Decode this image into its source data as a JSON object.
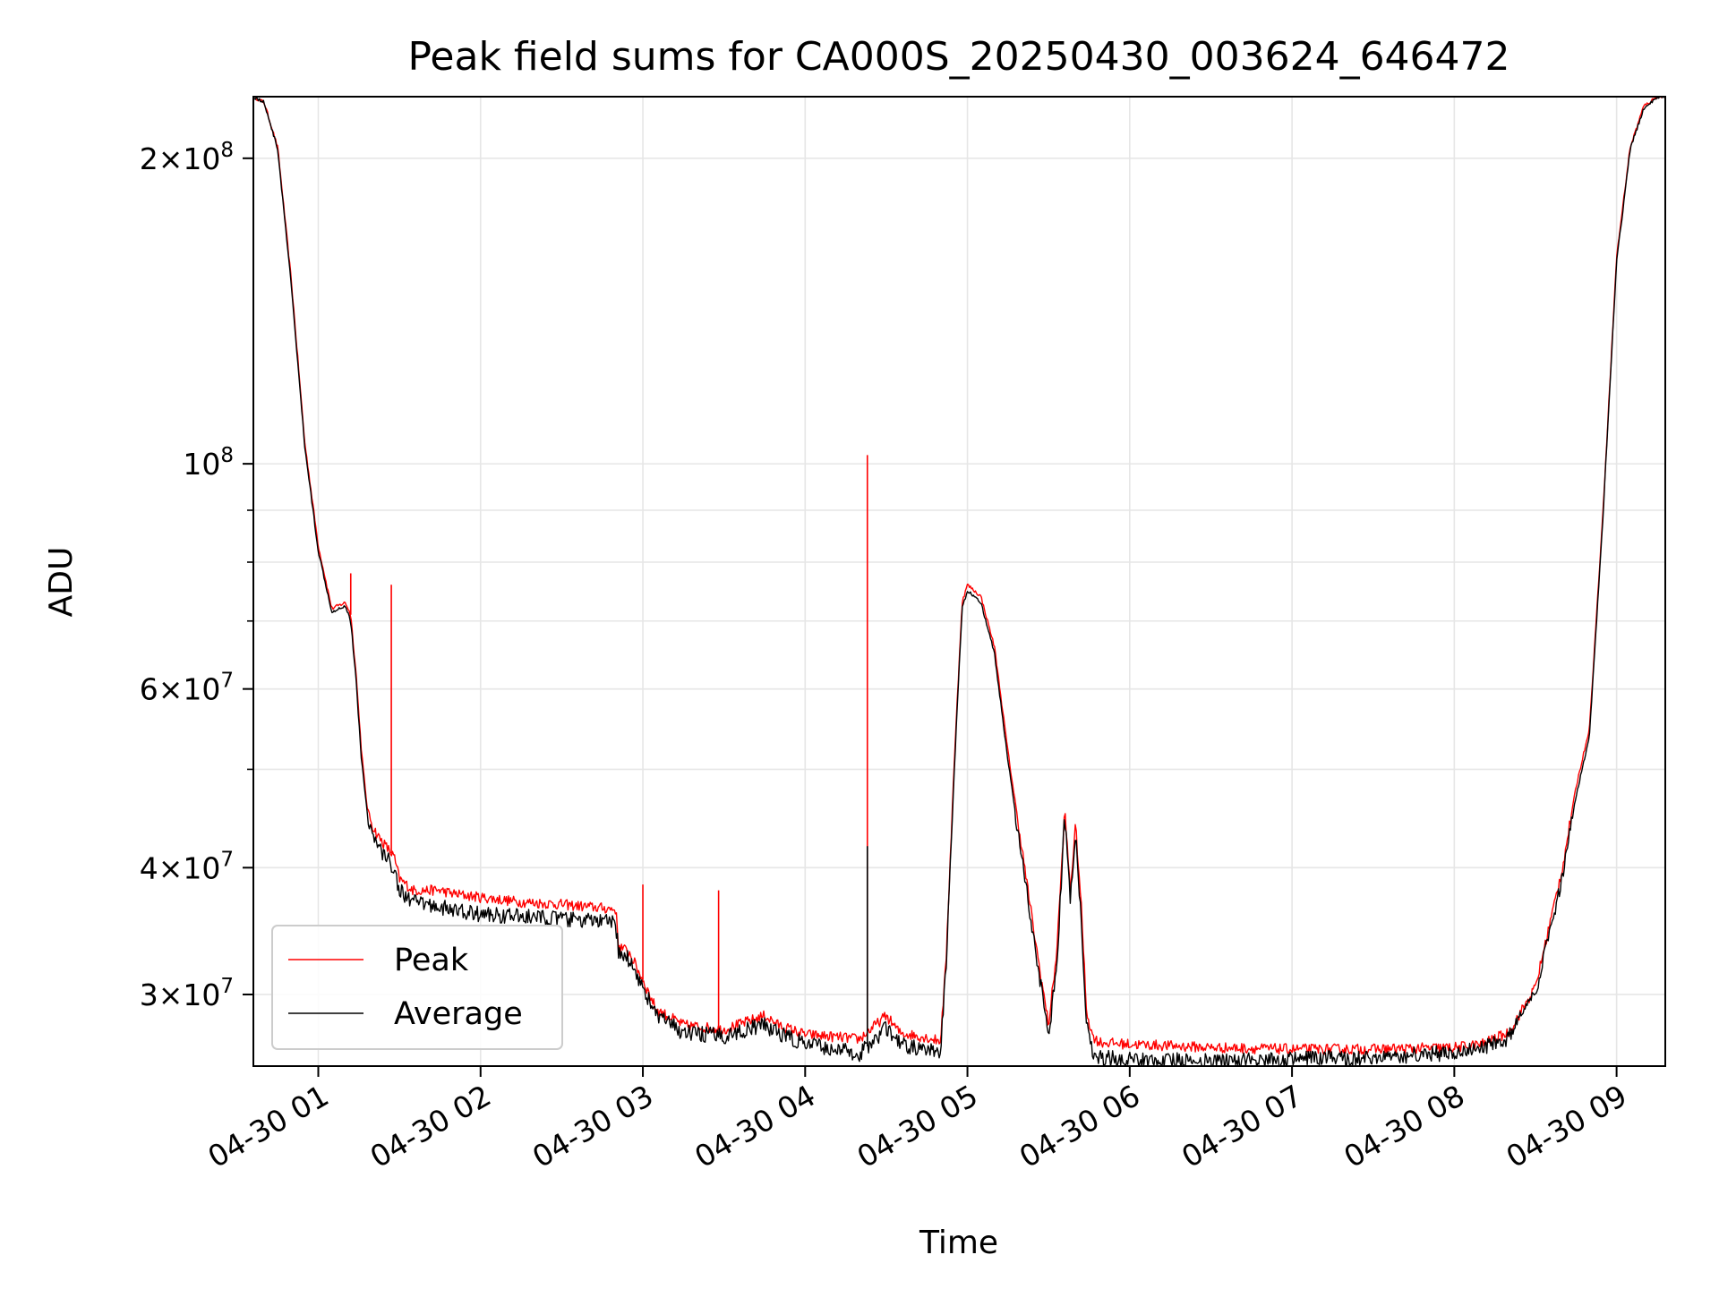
{
  "chart_data": {
    "type": "line",
    "title": "Peak field sums for CA000S_20250430_003624_646472",
    "xlabel": "Time",
    "ylabel": "ADU",
    "yscale": "log",
    "xlim": [
      "2025-04-30 00:36",
      "2025-04-30 09:18"
    ],
    "ylim": [
      25500000,
      230000000
    ],
    "grid": true,
    "legend_position": "lower-left",
    "x_ticks": [
      {
        "value": "2025-04-30 01:00",
        "label": "04-30 01"
      },
      {
        "value": "2025-04-30 02:00",
        "label": "04-30 02"
      },
      {
        "value": "2025-04-30 03:00",
        "label": "04-30 03"
      },
      {
        "value": "2025-04-30 04:00",
        "label": "04-30 04"
      },
      {
        "value": "2025-04-30 05:00",
        "label": "04-30 05"
      },
      {
        "value": "2025-04-30 06:00",
        "label": "04-30 06"
      },
      {
        "value": "2025-04-30 07:00",
        "label": "04-30 07"
      },
      {
        "value": "2025-04-30 08:00",
        "label": "04-30 08"
      },
      {
        "value": "2025-04-30 09:00",
        "label": "04-30 09"
      }
    ],
    "y_major_ticks": [
      {
        "value": 30000000,
        "base": "3",
        "exp": "7"
      },
      {
        "value": 40000000,
        "base": "4",
        "exp": "7"
      },
      {
        "value": 60000000,
        "base": "6",
        "exp": "7"
      },
      {
        "value": 100000000,
        "base": "",
        "exp": "8"
      },
      {
        "value": 200000000,
        "base": "2",
        "exp": "8"
      }
    ],
    "y_minor_ticks": [
      50000000,
      70000000,
      80000000,
      90000000
    ],
    "series": [
      {
        "name": "Peak",
        "color": "#ff0000",
        "x": [
          "2025-04-30 00:36",
          "2025-04-30 00:40",
          "2025-04-30 00:45",
          "2025-04-30 00:50",
          "2025-04-30 00:55",
          "2025-04-30 01:00",
          "2025-04-30 01:05",
          "2025-04-30 01:10",
          "2025-04-30 01:12",
          "2025-04-30 01:14",
          "2025-04-30 01:16",
          "2025-04-30 01:18",
          "2025-04-30 01:20",
          "2025-04-30 01:22",
          "2025-04-30 01:25",
          "2025-04-30 01:28",
          "2025-04-30 01:30",
          "2025-04-30 01:35",
          "2025-04-30 01:40",
          "2025-04-30 01:45",
          "2025-04-30 01:50",
          "2025-04-30 02:00",
          "2025-04-30 02:15",
          "2025-04-30 02:30",
          "2025-04-30 02:45",
          "2025-04-30 02:50",
          "2025-04-30 02:51",
          "2025-04-30 02:55",
          "2025-04-30 03:00",
          "2025-04-30 03:05",
          "2025-04-30 03:15",
          "2025-04-30 03:30",
          "2025-04-30 03:45",
          "2025-04-30 03:50",
          "2025-04-30 04:00",
          "2025-04-30 04:15",
          "2025-04-30 04:20",
          "2025-04-30 04:30",
          "2025-04-30 04:35",
          "2025-04-30 04:45",
          "2025-04-30 04:50",
          "2025-04-30 04:52",
          "2025-04-30 04:55",
          "2025-04-30 04:58",
          "2025-04-30 05:00",
          "2025-04-30 05:05",
          "2025-04-30 05:10",
          "2025-04-30 05:15",
          "2025-04-30 05:20",
          "2025-04-30 05:25",
          "2025-04-30 05:30",
          "2025-04-30 05:33",
          "2025-04-30 05:36",
          "2025-04-30 05:38",
          "2025-04-30 05:40",
          "2025-04-30 05:42",
          "2025-04-30 05:44",
          "2025-04-30 05:46",
          "2025-04-30 05:48",
          "2025-04-30 05:50",
          "2025-04-30 06:00",
          "2025-04-30 06:30",
          "2025-04-30 07:00",
          "2025-04-30 07:30",
          "2025-04-30 08:00",
          "2025-04-30 08:10",
          "2025-04-30 08:20",
          "2025-04-30 08:30",
          "2025-04-30 08:40",
          "2025-04-30 08:45",
          "2025-04-30 08:50",
          "2025-04-30 08:55",
          "2025-04-30 09:00",
          "2025-04-30 09:05",
          "2025-04-30 09:10",
          "2025-04-30 09:15"
        ],
        "y": [
          230000000,
          227000000,
          205000000,
          152000000,
          105000000,
          83000000,
          72000000,
          73000000,
          71000000,
          62000000,
          52000000,
          46000000,
          44000000,
          43000000,
          42000000,
          41000000,
          39000000,
          38000000,
          38000000,
          38000000,
          37700000,
          37400000,
          37000000,
          36800000,
          36500000,
          36400000,
          33500000,
          33000000,
          31000000,
          29000000,
          28000000,
          27700000,
          28600000,
          28000000,
          27400000,
          27200000,
          27100000,
          28600000,
          27500000,
          27200000,
          27000000,
          32000000,
          50000000,
          73000000,
          76000000,
          74000000,
          66000000,
          52000000,
          42000000,
          34000000,
          28000000,
          33000000,
          45500000,
          38000000,
          44000000,
          37000000,
          29000000,
          27400000,
          27000000,
          26900000,
          26800000,
          26600000,
          26500000,
          26500000,
          26600000,
          26800000,
          27500000,
          30500000,
          40000000,
          48000000,
          55000000,
          90000000,
          160000000,
          205000000,
          225000000,
          230000000
        ],
        "spikes": [
          {
            "x": "2025-04-30 01:12",
            "y": 78000000
          },
          {
            "x": "2025-04-30 01:27",
            "y": 76000000
          },
          {
            "x": "2025-04-30 03:00",
            "y": 38500000
          },
          {
            "x": "2025-04-30 03:28",
            "y": 38000000
          },
          {
            "x": "2025-04-30 04:23",
            "y": 102000000
          }
        ]
      },
      {
        "name": "Average",
        "color": "#000000",
        "x": [
          "2025-04-30 00:36",
          "2025-04-30 00:40",
          "2025-04-30 00:45",
          "2025-04-30 00:50",
          "2025-04-30 00:55",
          "2025-04-30 01:00",
          "2025-04-30 01:05",
          "2025-04-30 01:10",
          "2025-04-30 01:12",
          "2025-04-30 01:14",
          "2025-04-30 01:16",
          "2025-04-30 01:18",
          "2025-04-30 01:20",
          "2025-04-30 01:22",
          "2025-04-30 01:25",
          "2025-04-30 01:28",
          "2025-04-30 01:30",
          "2025-04-30 01:35",
          "2025-04-30 01:40",
          "2025-04-30 01:45",
          "2025-04-30 01:50",
          "2025-04-30 02:00",
          "2025-04-30 02:15",
          "2025-04-30 02:30",
          "2025-04-30 02:45",
          "2025-04-30 02:50",
          "2025-04-30 02:51",
          "2025-04-30 02:55",
          "2025-04-30 03:00",
          "2025-04-30 03:05",
          "2025-04-30 03:15",
          "2025-04-30 03:30",
          "2025-04-30 03:45",
          "2025-04-30 03:50",
          "2025-04-30 04:00",
          "2025-04-30 04:15",
          "2025-04-30 04:20",
          "2025-04-30 04:30",
          "2025-04-30 04:35",
          "2025-04-30 04:45",
          "2025-04-30 04:50",
          "2025-04-30 04:52",
          "2025-04-30 04:55",
          "2025-04-30 04:58",
          "2025-04-30 05:00",
          "2025-04-30 05:05",
          "2025-04-30 05:10",
          "2025-04-30 05:15",
          "2025-04-30 05:20",
          "2025-04-30 05:25",
          "2025-04-30 05:30",
          "2025-04-30 05:33",
          "2025-04-30 05:36",
          "2025-04-30 05:38",
          "2025-04-30 05:40",
          "2025-04-30 05:42",
          "2025-04-30 05:44",
          "2025-04-30 05:46",
          "2025-04-30 05:48",
          "2025-04-30 05:50",
          "2025-04-30 06:00",
          "2025-04-30 06:30",
          "2025-04-30 07:00",
          "2025-04-30 07:30",
          "2025-04-30 08:00",
          "2025-04-30 08:10",
          "2025-04-30 08:20",
          "2025-04-30 08:30",
          "2025-04-30 08:40",
          "2025-04-30 08:45",
          "2025-04-30 08:50",
          "2025-04-30 08:55",
          "2025-04-30 09:00",
          "2025-04-30 09:05",
          "2025-04-30 09:10",
          "2025-04-30 09:15"
        ],
        "y": [
          230000000,
          227000000,
          204000000,
          150000000,
          104000000,
          82000000,
          71500000,
          72500000,
          70000000,
          61000000,
          51000000,
          45500000,
          43000000,
          42000000,
          41000000,
          40000000,
          38000000,
          37000000,
          36800000,
          36600000,
          36300000,
          36000000,
          35800000,
          35600000,
          35400000,
          35200000,
          33000000,
          32500000,
          30500000,
          28600000,
          27500000,
          27300000,
          28000000,
          27500000,
          26800000,
          26400000,
          26200000,
          27800000,
          26800000,
          26400000,
          26300000,
          31500000,
          49000000,
          72000000,
          75000000,
          73000000,
          65000000,
          51000000,
          41000000,
          33500000,
          27300000,
          32000000,
          45000000,
          37000000,
          43000000,
          36000000,
          28000000,
          26500000,
          26100000,
          26000000,
          25900000,
          25800000,
          25900000,
          26000000,
          26300000,
          26500000,
          27200000,
          30000000,
          39000000,
          47000000,
          54000000,
          89000000,
          158000000,
          204000000,
          224000000,
          230000000
        ],
        "spikes": [
          {
            "x": "2025-04-30 04:23",
            "y": 42000000
          }
        ]
      }
    ]
  }
}
